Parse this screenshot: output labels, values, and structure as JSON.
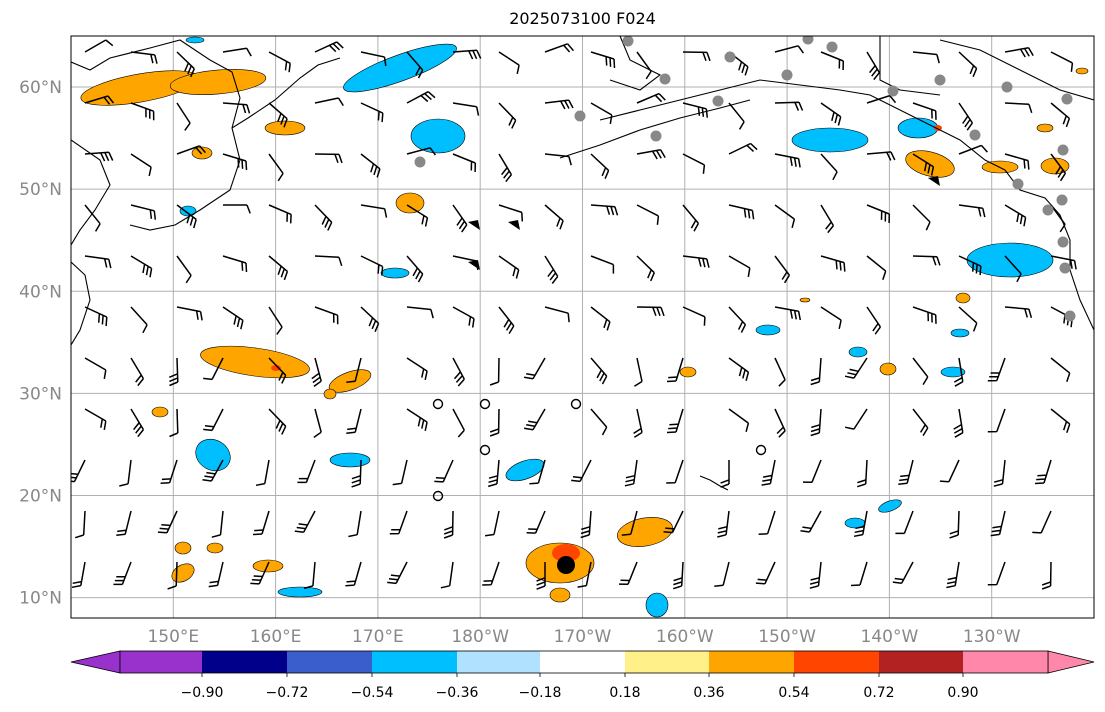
{
  "title": "2025073100 F024",
  "map": {
    "lon_range": [
      140,
      240
    ],
    "lat_range": [
      8,
      65
    ],
    "grid_lons": [
      150,
      160,
      170,
      180,
      190,
      200,
      210,
      220,
      230
    ],
    "grid_lats": [
      10,
      20,
      30,
      40,
      50,
      60
    ],
    "lat_labels": [
      "10°N",
      "20°N",
      "30°N",
      "40°N",
      "50°N",
      "60°N"
    ],
    "lon_labels": [
      "150°E",
      "160°E",
      "170°E",
      "180°W",
      "170°W",
      "160°W",
      "150°W",
      "140°W",
      "130°W"
    ],
    "grid_color": "#b0b0b0",
    "coast_color": "#000000"
  },
  "colorbar": {
    "ticks": [
      "−0.90",
      "−0.72",
      "−0.54",
      "−0.36",
      "−0.18",
      "0.18",
      "0.36",
      "0.54",
      "0.72",
      "0.90"
    ],
    "colors": [
      "#9932cc",
      "#00008b",
      "#3a5fcd",
      "#00bfff",
      "#b0e2ff",
      "#ffffff",
      "#fff08a",
      "#ffa500",
      "#ff4500",
      "#b22222",
      "#ff88aa"
    ]
  },
  "features": {
    "orange_fill": "#ffa500",
    "red_fill": "#ff4500",
    "blue_fill": "#00bfff",
    "station_color": "#888888"
  }
}
